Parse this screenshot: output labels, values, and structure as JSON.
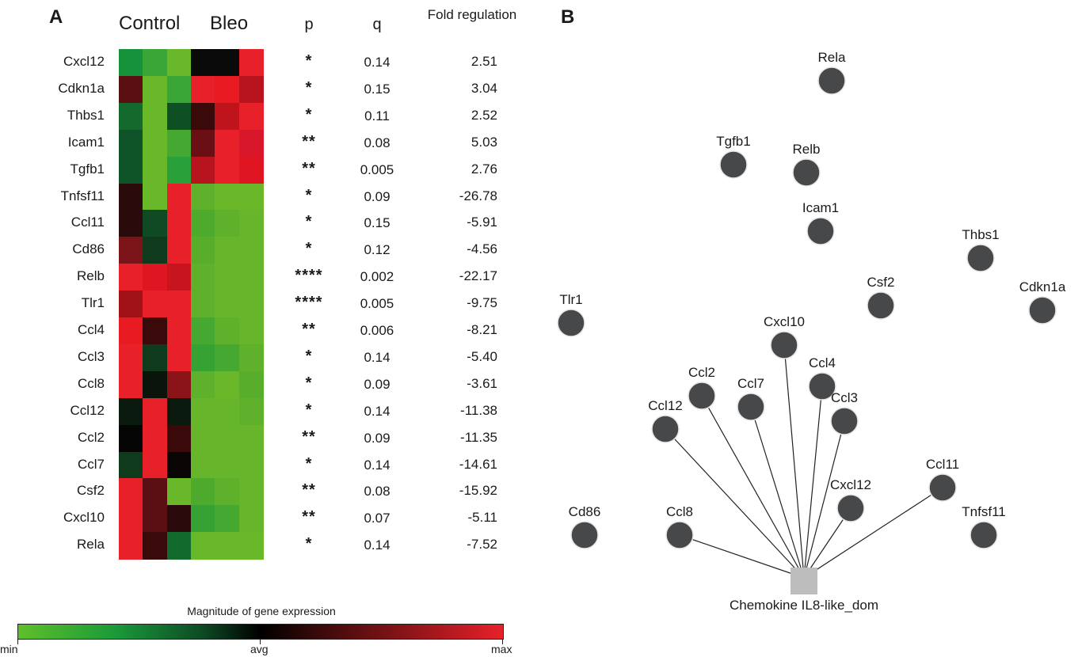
{
  "panel_a": {
    "letter": "A",
    "group_headers": {
      "control": "Control",
      "bleo": "Bleo"
    },
    "col_headers": {
      "p": "p",
      "q": "q",
      "fold": "Fold regulation"
    },
    "rows": [
      {
        "gene": "Cxcl12",
        "p": "*",
        "q": "0.14",
        "fold": "2.51",
        "colors": [
          "#15923a",
          "#3aa636",
          "#69b82a",
          "#0a0a0a",
          "#0a0a0a",
          "#e8202a"
        ]
      },
      {
        "gene": "Cdkn1a",
        "p": "*",
        "q": "0.15",
        "fold": "3.04",
        "colors": [
          "#5a0f12",
          "#69b82a",
          "#3aa636",
          "#e8202a",
          "#e81a22",
          "#b8141e"
        ]
      },
      {
        "gene": "Thbs1",
        "p": "*",
        "q": "0.11",
        "fold": "2.52",
        "colors": [
          "#136a2c",
          "#69b82a",
          "#0f4f24",
          "#3a0a0a",
          "#c0141c",
          "#e8202a"
        ]
      },
      {
        "gene": "Icam1",
        "p": "**",
        "q": "0.08",
        "fold": "5.03",
        "colors": [
          "#0f5428",
          "#69b82a",
          "#45a830",
          "#6a1014",
          "#e8202a",
          "#d8182a"
        ]
      },
      {
        "gene": "Tgfb1",
        "p": "**",
        "q": "0.005",
        "fold": "2.76",
        "colors": [
          "#0f5428",
          "#69b82a",
          "#2aa03a",
          "#b8141e",
          "#e8202a",
          "#e01522"
        ]
      },
      {
        "gene": "Tnfsf11",
        "p": "*",
        "q": "0.09",
        "fold": "-26.78",
        "colors": [
          "#2a0a0a",
          "#69b82a",
          "#e8202a",
          "#5fb02a",
          "#6ab82a",
          "#6ab82a"
        ]
      },
      {
        "gene": "Ccl11",
        "p": "*",
        "q": "0.15",
        "fold": "-5.91",
        "colors": [
          "#2a0a0a",
          "#0f4a24",
          "#e8202a",
          "#4eaa2c",
          "#5fb02a",
          "#66b52a"
        ]
      },
      {
        "gene": "Cd86",
        "p": "*",
        "q": "0.12",
        "fold": "-4.56",
        "colors": [
          "#7a1418",
          "#0f3a1c",
          "#e8202a",
          "#58ad2a",
          "#66b52a",
          "#66b52a"
        ]
      },
      {
        "gene": "Relb",
        "p": "****",
        "q": "0.002",
        "fold": "-22.17",
        "colors": [
          "#e8202a",
          "#e01522",
          "#c8141e",
          "#5fb02a",
          "#66b52a",
          "#66b52a"
        ]
      },
      {
        "gene": "Tlr1",
        "p": "****",
        "q": "0.005",
        "fold": "-9.75",
        "colors": [
          "#a01218",
          "#e8202a",
          "#e8202a",
          "#5fb02a",
          "#66b52a",
          "#66b52a"
        ]
      },
      {
        "gene": "Ccl4",
        "p": "**",
        "q": "0.006",
        "fold": "-8.21",
        "colors": [
          "#e81a22",
          "#3a0a0a",
          "#e8202a",
          "#45a830",
          "#5fb02a",
          "#66b52a"
        ]
      },
      {
        "gene": "Ccl3",
        "p": "*",
        "q": "0.14",
        "fold": "-5.40",
        "colors": [
          "#e8202a",
          "#0f3a1c",
          "#e8202a",
          "#35a233",
          "#45a830",
          "#5fb02a"
        ]
      },
      {
        "gene": "Ccl8",
        "p": "*",
        "q": "0.09",
        "fold": "-3.61",
        "colors": [
          "#e8202a",
          "#0a140a",
          "#8a1418",
          "#5fb02a",
          "#6ab82a",
          "#58ad2a"
        ]
      },
      {
        "gene": "Ccl12",
        "p": "*",
        "q": "0.14",
        "fold": "-11.38",
        "colors": [
          "#0a1a0e",
          "#e8202a",
          "#0a1a0e",
          "#66b52a",
          "#66b52a",
          "#5fb02a"
        ]
      },
      {
        "gene": "Ccl2",
        "p": "**",
        "q": "0.09",
        "fold": "-11.35",
        "colors": [
          "#050505",
          "#e8202a",
          "#3a0a0a",
          "#66b52a",
          "#66b52a",
          "#66b52a"
        ]
      },
      {
        "gene": "Ccl7",
        "p": "*",
        "q": "0.14",
        "fold": "-14.61",
        "colors": [
          "#0f3a1c",
          "#e8202a",
          "#0a0505",
          "#66b52a",
          "#66b52a",
          "#66b52a"
        ]
      },
      {
        "gene": "Csf2",
        "p": "**",
        "q": "0.08",
        "fold": "-15.92",
        "colors": [
          "#e8202a",
          "#5a0f12",
          "#69b82a",
          "#4eaa2c",
          "#5fb02a",
          "#66b52a"
        ]
      },
      {
        "gene": "Cxcl10",
        "p": "**",
        "q": "0.07",
        "fold": "-5.11",
        "colors": [
          "#e8202a",
          "#5a0f12",
          "#2a0a0a",
          "#35a233",
          "#45a830",
          "#66b52a"
        ]
      },
      {
        "gene": "Rela",
        "p": "*",
        "q": "0.14",
        "fold": "-7.52",
        "colors": [
          "#e8202a",
          "#3a0a0a",
          "#126a2c",
          "#69b82a",
          "#69b82a",
          "#69b82a"
        ]
      }
    ],
    "legend": {
      "title": "Magnitude of gene expression",
      "min": "min",
      "avg": "avg",
      "max": "max"
    }
  },
  "panel_b": {
    "letter": "B",
    "hub_label": "Chemokine IL8-like_dom",
    "node_color": "#46484a",
    "hub_color": "#bdbdbd",
    "nodes": [
      {
        "name": "Rela",
        "linked": false
      },
      {
        "name": "Tgfb1",
        "linked": false
      },
      {
        "name": "Relb",
        "linked": false
      },
      {
        "name": "Icam1",
        "linked": false
      },
      {
        "name": "Thbs1",
        "linked": false
      },
      {
        "name": "Csf2",
        "linked": false
      },
      {
        "name": "Cdkn1a",
        "linked": false
      },
      {
        "name": "Tlr1",
        "linked": false
      },
      {
        "name": "Cxcl10",
        "linked": true
      },
      {
        "name": "Ccl2",
        "linked": true
      },
      {
        "name": "Ccl7",
        "linked": true
      },
      {
        "name": "Ccl4",
        "linked": true
      },
      {
        "name": "Ccl3",
        "linked": true
      },
      {
        "name": "Ccl12",
        "linked": true
      },
      {
        "name": "Ccl11",
        "linked": true
      },
      {
        "name": "Cxcl12",
        "linked": true
      },
      {
        "name": "Cd86",
        "linked": false
      },
      {
        "name": "Ccl8",
        "linked": true
      },
      {
        "name": "Tnfsf11",
        "linked": false
      }
    ]
  }
}
